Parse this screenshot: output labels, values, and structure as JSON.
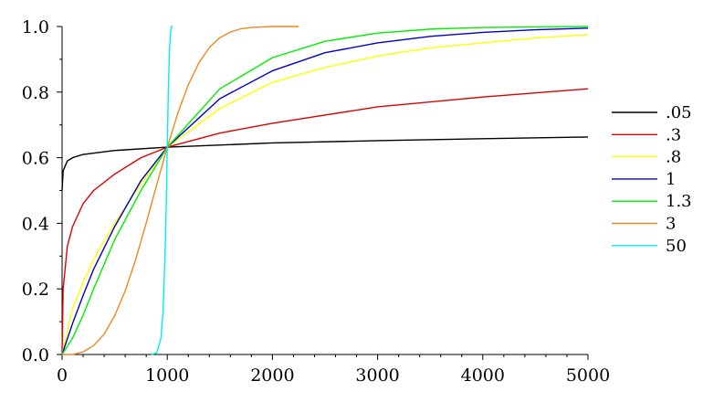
{
  "chart_data": {
    "type": "line",
    "title": "",
    "xlabel": "",
    "ylabel": "",
    "xlim": [
      0,
      5000
    ],
    "ylim": [
      0,
      1.0
    ],
    "xticks": [
      0,
      1000,
      2000,
      3000,
      4000,
      5000
    ],
    "yticks": [
      0.0,
      0.2,
      0.4,
      0.6,
      0.8,
      1.0
    ],
    "xtick_labels": [
      "0",
      "1000",
      "2000",
      "3000",
      "4000",
      "5000"
    ],
    "ytick_labels": [
      "0.0",
      "0.2",
      "0.4",
      "0.6",
      "0.8",
      "1.0"
    ],
    "grid": false,
    "legend_position": "right",
    "series": [
      {
        "name": ".05",
        "color": "#000000",
        "x": [
          0,
          10,
          50,
          100,
          200,
          500,
          1000,
          2000,
          3000,
          4000,
          5000
        ],
        "y": [
          0.5,
          0.56,
          0.59,
          0.6,
          0.61,
          0.622,
          0.632,
          0.645,
          0.652,
          0.658,
          0.663
        ]
      },
      {
        "name": ".3",
        "color": "#dd0000",
        "x": [
          0,
          10,
          50,
          100,
          200,
          300,
          500,
          750,
          1000,
          1500,
          2000,
          3000,
          4000,
          5000
        ],
        "y": [
          0.0,
          0.2,
          0.33,
          0.39,
          0.46,
          0.5,
          0.55,
          0.6,
          0.632,
          0.675,
          0.705,
          0.755,
          0.785,
          0.81
        ]
      },
      {
        "name": ".8",
        "color": "#ffff00",
        "x": [
          0,
          100,
          200,
          300,
          500,
          750,
          1000,
          1500,
          2000,
          2500,
          3000,
          3500,
          4000,
          4500,
          5000
        ],
        "y": [
          0.0,
          0.14,
          0.22,
          0.29,
          0.4,
          0.52,
          0.632,
          0.75,
          0.83,
          0.875,
          0.91,
          0.935,
          0.95,
          0.965,
          0.975
        ]
      },
      {
        "name": "1",
        "color": "#0000cc",
        "x": [
          0,
          100,
          200,
          300,
          500,
          750,
          1000,
          1500,
          2000,
          2500,
          3000,
          3500,
          4000,
          4500,
          5000
        ],
        "y": [
          0.0,
          0.095,
          0.18,
          0.26,
          0.39,
          0.53,
          0.632,
          0.78,
          0.865,
          0.92,
          0.95,
          0.97,
          0.982,
          0.99,
          0.995
        ]
      },
      {
        "name": "1.3",
        "color": "#00ee00",
        "x": [
          0,
          100,
          200,
          300,
          500,
          750,
          1000,
          1500,
          2000,
          2500,
          3000,
          3500,
          4000,
          5000
        ],
        "y": [
          0.0,
          0.05,
          0.12,
          0.2,
          0.35,
          0.5,
          0.632,
          0.81,
          0.905,
          0.955,
          0.98,
          0.992,
          0.997,
          1.0
        ]
      },
      {
        "name": "3",
        "color": "#ee8822",
        "x": [
          0,
          100,
          200,
          300,
          400,
          500,
          600,
          700,
          800,
          900,
          1000,
          1100,
          1200,
          1300,
          1400,
          1500,
          1600,
          1700,
          1800,
          2000,
          2250
        ],
        "y": [
          0.0,
          0.0,
          0.008,
          0.027,
          0.062,
          0.118,
          0.194,
          0.29,
          0.401,
          0.518,
          0.632,
          0.735,
          0.822,
          0.889,
          0.936,
          0.966,
          0.983,
          0.993,
          0.997,
          1.0,
          1.0
        ]
      },
      {
        "name": "50",
        "color": "#00eeee",
        "x": [
          850,
          900,
          940,
          960,
          980,
          990,
          1000,
          1010,
          1020,
          1030,
          1040,
          1050
        ],
        "y": [
          0.0,
          0.005,
          0.05,
          0.13,
          0.32,
          0.45,
          0.632,
          0.8,
          0.92,
          0.98,
          1.0,
          1.0
        ]
      }
    ]
  }
}
